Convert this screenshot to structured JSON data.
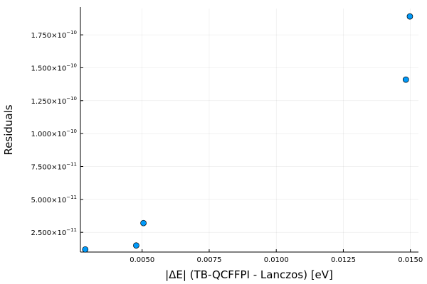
{
  "chart_data": {
    "type": "scatter",
    "title": "",
    "xlabel": "|ΔE| (TB-QCFFPI - Lanczos) [eV]",
    "ylabel": "Residuals",
    "x_ticks": [
      {
        "value": 0.005,
        "label": "0.0050"
      },
      {
        "value": 0.0075,
        "label": "0.0075"
      },
      {
        "value": 0.01,
        "label": "0.0100"
      },
      {
        "value": 0.0125,
        "label": "0.0125"
      },
      {
        "value": 0.015,
        "label": "0.0150"
      }
    ],
    "y_ticks": [
      {
        "value": 2.5e-11,
        "mantissa": "2.500×10",
        "exp": "−11"
      },
      {
        "value": 5e-11,
        "mantissa": "5.000×10",
        "exp": "−11"
      },
      {
        "value": 7.5e-11,
        "mantissa": "7.500×10",
        "exp": "−11"
      },
      {
        "value": 1e-10,
        "mantissa": "1.000×10",
        "exp": "−10"
      },
      {
        "value": 1.25e-10,
        "mantissa": "1.250×10",
        "exp": "−10"
      },
      {
        "value": 1.5e-10,
        "mantissa": "1.500×10",
        "exp": "−10"
      },
      {
        "value": 1.75e-10,
        "mantissa": "1.750×10",
        "exp": "−10"
      }
    ],
    "xlim": [
      0.0027,
      0.0153
    ],
    "ylim": [
      1e-11,
      1.95e-10
    ],
    "grid": true,
    "legend": "none",
    "marker_color": "#009AFA",
    "series": [
      {
        "points": [
          {
            "x": 0.00288,
            "y": 1.2e-11
          },
          {
            "x": 0.00478,
            "y": 1.5e-11
          },
          {
            "x": 0.00505,
            "y": 3.2e-11
          },
          {
            "x": 0.01483,
            "y": 1.41e-10
          },
          {
            "x": 0.01498,
            "y": 1.89e-10
          }
        ]
      }
    ]
  }
}
